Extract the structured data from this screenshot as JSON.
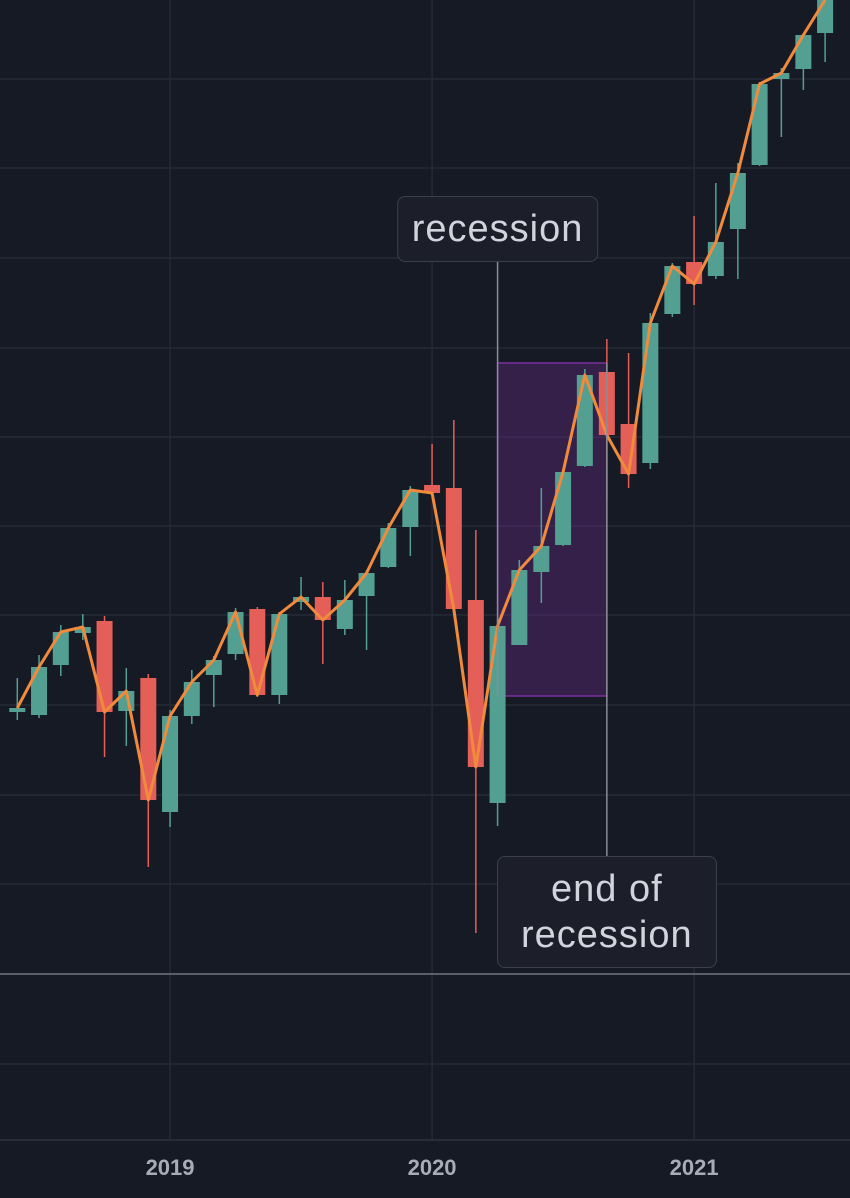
{
  "chart_data": {
    "type": "candlestick",
    "x": [
      2018.417,
      2018.5,
      2018.583,
      2018.667,
      2018.75,
      2018.833,
      2018.917,
      2019.0,
      2019.083,
      2019.167,
      2019.25,
      2019.333,
      2019.417,
      2019.5,
      2019.583,
      2019.667,
      2019.75,
      2019.833,
      2019.917,
      2020.0,
      2020.083,
      2020.167,
      2020.25,
      2020.333,
      2020.417,
      2020.5,
      2020.583,
      2020.667,
      2020.75,
      2020.833,
      2020.917,
      2021.0,
      2021.083,
      2021.167,
      2021.25,
      2021.333,
      2021.417,
      2021.5
    ],
    "open": [
      428,
      425,
      475,
      507,
      519,
      429,
      462,
      328,
      424,
      465,
      486,
      531,
      445,
      538,
      543,
      511,
      544,
      573,
      613,
      655,
      652,
      540,
      337,
      495,
      568,
      595,
      674,
      768,
      716,
      677,
      826,
      878,
      864,
      911,
      975,
      1061,
      1071,
      1107
    ],
    "high": [
      462,
      485,
      515,
      526,
      524,
      472,
      466,
      430,
      470,
      484,
      532,
      533,
      528,
      563,
      558,
      560,
      570,
      617,
      654,
      696,
      720,
      610,
      520,
      580,
      652,
      668,
      771,
      801,
      787,
      827,
      877,
      924,
      957,
      977,
      1058,
      1072,
      1105,
      1145
    ],
    "low": [
      420,
      422,
      464,
      500,
      383,
      394,
      273,
      313,
      416,
      433,
      480,
      443,
      436,
      530,
      476,
      505,
      490,
      572,
      584,
      645,
      528,
      207,
      314,
      495,
      537,
      594,
      673,
      640,
      652,
      671,
      823,
      835,
      861,
      861,
      974,
      1003,
      1050,
      1078
    ],
    "close": [
      432,
      473,
      508,
      513,
      428,
      449,
      340,
      424,
      458,
      480,
      528,
      445,
      526,
      543,
      520,
      540,
      567,
      612,
      650,
      647,
      531,
      373,
      514,
      570,
      594,
      668,
      765,
      705,
      666,
      817,
      874,
      856,
      898,
      967,
      1056,
      1067,
      1105,
      1140
    ],
    "up_color": "#53a093",
    "down_color": "#e35f57",
    "line_color": "#f08a3c",
    "xlim": [
      2018.351,
      2021.595
    ],
    "xticks": [
      2019,
      2020,
      2021
    ],
    "ylim": [
      0,
      1140
    ],
    "yticks": [
      76,
      166,
      256,
      345,
      435,
      525,
      614,
      703,
      792,
      882,
      972,
      1061
    ],
    "price_line": 166,
    "grid": true,
    "shaded_region": {
      "x": [
        2020.25,
        2020.667
      ],
      "y": [
        444,
        777
      ],
      "color": "#7b2fa0"
    },
    "annotations": [
      {
        "text": "recession",
        "x": 2020.25,
        "y": 911
      },
      {
        "text": "end of recession",
        "x": 2020.667,
        "y": 228
      }
    ]
  }
}
